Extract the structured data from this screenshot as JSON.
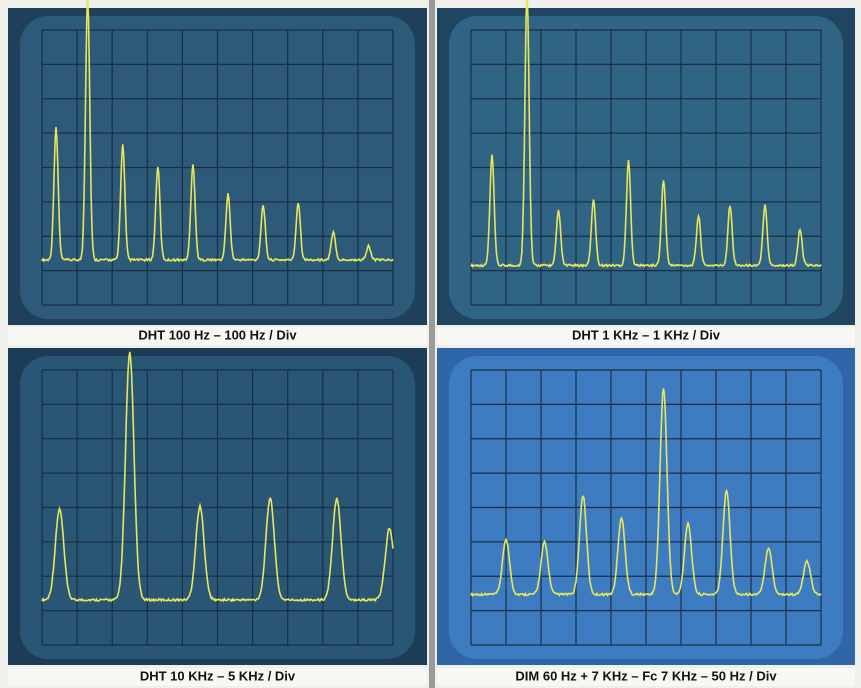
{
  "panels": [
    {
      "caption": "DHT  100 Hz – 100 Hz / Div"
    },
    {
      "caption": "DHT  1 KHz – 1 KHz / Div"
    },
    {
      "caption": "DHT 10 KHz – 5 KHz / Div"
    },
    {
      "caption": "DIM 60 Hz + 7 KHz – Fc 7 KHz – 50 Hz / Div"
    }
  ]
}
